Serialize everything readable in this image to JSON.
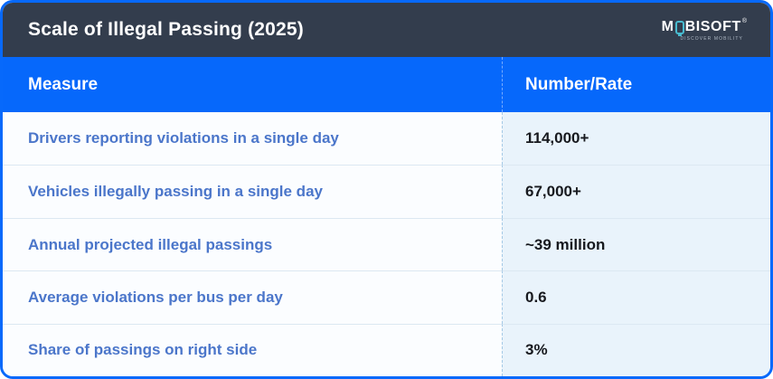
{
  "chart_data": {
    "type": "table",
    "title": "Scale of Illegal Passing (2025)",
    "columns": [
      "Measure",
      "Number/Rate"
    ],
    "rows": [
      {
        "measure": "Drivers reporting violations in a single day",
        "value": "114,000+"
      },
      {
        "measure": "Vehicles illegally passing in a single day",
        "value": "67,000+"
      },
      {
        "measure": "Annual projected illegal passings",
        "value": "~39 million"
      },
      {
        "measure": "Average violations per bus per day",
        "value": "0.6"
      },
      {
        "measure": "Share of passings on right side",
        "value": "3%"
      }
    ]
  },
  "branding": {
    "logo_text_pre": "M",
    "logo_text_post": "BISOFT",
    "registered_mark": "®",
    "tagline": "DISCOVER MOBILITY",
    "logo_icon": "phone-outline-icon"
  },
  "colors": {
    "accent_blue": "#0668fb",
    "dark_header_bg": "#333d4d",
    "measure_text": "#4b76ca",
    "value_text": "#17191e",
    "measure_cell_bg": "#fbfdff",
    "value_cell_bg": "#e9f3fb",
    "row_divider": "#dce8f2",
    "logo_teal": "#49bcd0"
  }
}
